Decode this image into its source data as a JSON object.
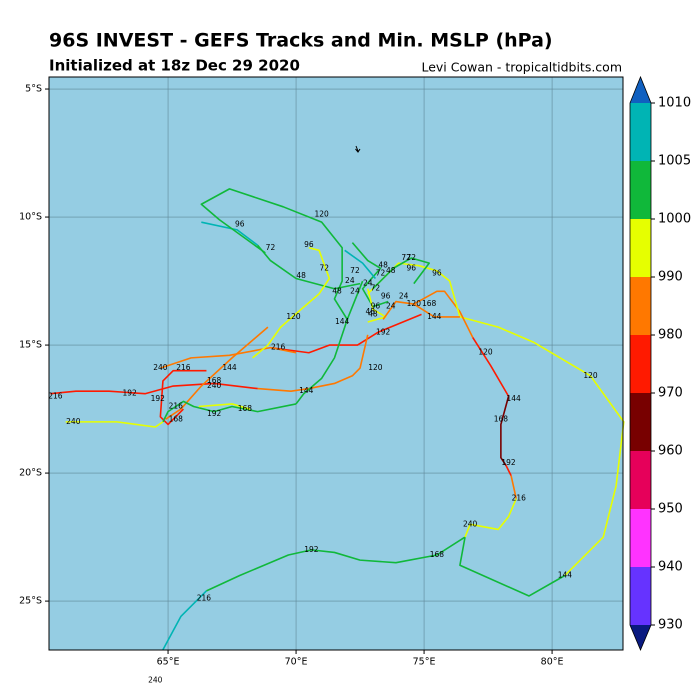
{
  "map": {
    "title": "96S INVEST - GEFS Tracks and Min. MSLP (hPa)",
    "subtitle": "Initialized at 18z Dec 29 2020",
    "credit": "Levi Cowan - tropicaltidbits.com",
    "background": "#95cde3",
    "xlim": [
      60.35,
      82.77
    ],
    "ylim": [
      -26.91,
      -4.53
    ],
    "xticks": [
      {
        "value": 65,
        "label": "65°E"
      },
      {
        "value": 70,
        "label": "70°E"
      },
      {
        "value": 75,
        "label": "75°E"
      },
      {
        "value": 80,
        "label": "80°E"
      }
    ],
    "yticks": [
      {
        "value": -5,
        "label": "5°S"
      },
      {
        "value": -10,
        "label": "10°S"
      },
      {
        "value": -15,
        "label": "15°S"
      },
      {
        "value": -20,
        "label": "20°S"
      },
      {
        "value": -25,
        "label": "25°S"
      }
    ],
    "grid": true,
    "colorbar": {
      "bounds": [
        930,
        940,
        950,
        960,
        970,
        980,
        990,
        1000,
        1005,
        1010
      ],
      "colors": [
        "#6633ff",
        "#ff33ff",
        "#e6005a",
        "#780000",
        "#ff1a00",
        "#ff7800",
        "#e6ff00",
        "#10b83a",
        "#00b4b4"
      ],
      "under": "#0a1a80",
      "over": "#1060c0"
    },
    "tracks": [
      {
        "color": "#e6ff00",
        "points": [
          [
            76.4,
            -13.9
          ],
          [
            77.9,
            -14.3
          ],
          [
            79.3,
            -14.9
          ],
          [
            81.5,
            -16.2
          ],
          [
            82.8,
            -18.0
          ],
          [
            82.5,
            -20.5
          ],
          [
            82.0,
            -22.5
          ],
          [
            80.5,
            -24.0
          ]
        ]
      },
      {
        "color": "#10b83a",
        "points": [
          [
            80.5,
            -24.0
          ],
          [
            79.1,
            -24.8
          ],
          [
            76.4,
            -23.6
          ],
          [
            76.6,
            -22.5
          ]
        ]
      },
      {
        "color": "#10b83a",
        "points": [
          [
            76.6,
            -22.5
          ],
          [
            75.5,
            -23.2
          ],
          [
            73.9,
            -23.5
          ],
          [
            72.5,
            -23.4
          ],
          [
            71.5,
            -23.1
          ],
          [
            70.6,
            -23.0
          ],
          [
            69.7,
            -23.2
          ],
          [
            67.8,
            -24.0
          ],
          [
            66.5,
            -24.6
          ]
        ]
      },
      {
        "color": "#00b4b4",
        "points": [
          [
            66.5,
            -24.6
          ],
          [
            65.5,
            -25.6
          ],
          [
            64.8,
            -26.9
          ]
        ]
      },
      {
        "color": "#ff7800",
        "points": [
          [
            74.6,
            -13.4
          ],
          [
            75.5,
            -12.9
          ],
          [
            75.8,
            -12.9
          ],
          [
            76.4,
            -13.7
          ],
          [
            76.9,
            -14.7
          ]
        ]
      },
      {
        "color": "#ff1a00",
        "points": [
          [
            76.9,
            -14.7
          ],
          [
            77.6,
            -15.8
          ],
          [
            78.3,
            -17.0
          ]
        ]
      },
      {
        "color": "#780000",
        "points": [
          [
            78.3,
            -17.0
          ],
          [
            78.0,
            -18.1
          ],
          [
            78.0,
            -19.4
          ],
          [
            78.2,
            -19.7
          ]
        ]
      },
      {
        "color": "#ff1a00",
        "points": [
          [
            78.2,
            -19.7
          ],
          [
            78.4,
            -20.1
          ]
        ]
      },
      {
        "color": "#ff7800",
        "points": [
          [
            78.4,
            -20.1
          ],
          [
            78.6,
            -21.0
          ]
        ]
      },
      {
        "color": "#e6ff00",
        "points": [
          [
            78.6,
            -21.0
          ],
          [
            78.3,
            -21.7
          ],
          [
            77.9,
            -22.2
          ],
          [
            76.8,
            -22.0
          ],
          [
            76.6,
            -22.5
          ]
        ]
      },
      {
        "color": "#ff1a00",
        "points": [
          [
            74.9,
            -13.8
          ],
          [
            73.2,
            -14.5
          ],
          [
            72.4,
            -15.0
          ],
          [
            71.3,
            -15.0
          ],
          [
            70.5,
            -15.3
          ],
          [
            69.0,
            -15.1
          ]
        ]
      },
      {
        "color": "#ff7800",
        "points": [
          [
            72.8,
            -14.6
          ],
          [
            72.5,
            -15.9
          ],
          [
            72.2,
            -16.2
          ],
          [
            71.5,
            -16.5
          ],
          [
            70.5,
            -16.7
          ],
          [
            69.8,
            -16.8
          ],
          [
            68.5,
            -16.7
          ]
        ]
      },
      {
        "color": "#ff1a00",
        "points": [
          [
            68.5,
            -16.7
          ],
          [
            66.8,
            -16.5
          ],
          [
            65.2,
            -16.6
          ],
          [
            64.1,
            -16.9
          ],
          [
            62.7,
            -16.8
          ],
          [
            61.4,
            -16.8
          ],
          [
            60.4,
            -16.9
          ]
        ]
      },
      {
        "color": "#ff7800",
        "points": [
          [
            70.0,
            -15.3
          ],
          [
            69.0,
            -15.1
          ],
          [
            67.4,
            -15.4
          ],
          [
            65.9,
            -15.5
          ],
          [
            64.7,
            -15.9
          ]
        ]
      },
      {
        "color": "#ff7800",
        "points": [
          [
            68.9,
            -14.3
          ],
          [
            67.5,
            -15.5
          ],
          [
            66.3,
            -16.6
          ],
          [
            65.5,
            -17.5
          ],
          [
            64.9,
            -17.9
          ]
        ]
      },
      {
        "color": "#ff1a00",
        "points": [
          [
            66.5,
            -16.0
          ],
          [
            65.2,
            -16.0
          ],
          [
            64.8,
            -16.4
          ],
          [
            64.7,
            -17.8
          ],
          [
            65.0,
            -18.1
          ],
          [
            65.6,
            -17.5
          ]
        ]
      },
      {
        "color": "#10b83a",
        "points": [
          [
            70.0,
            -17.3
          ],
          [
            68.5,
            -17.6
          ],
          [
            67.5,
            -17.4
          ],
          [
            66.8,
            -17.6
          ],
          [
            66.0,
            -17.4
          ],
          [
            65.6,
            -17.2
          ],
          [
            65.0,
            -17.6
          ],
          [
            64.8,
            -18.0
          ]
        ]
      },
      {
        "color": "#e6ff00",
        "points": [
          [
            64.8,
            -18.0
          ],
          [
            64.5,
            -18.2
          ],
          [
            63.0,
            -18.0
          ],
          [
            61.0,
            -18.0
          ]
        ]
      },
      {
        "color": "#e6ff00",
        "points": [
          [
            66.2,
            -17.4
          ],
          [
            67.5,
            -17.3
          ],
          [
            68.2,
            -17.5
          ]
        ]
      },
      {
        "color": "#00b4b4",
        "points": [
          [
            66.3,
            -10.2
          ],
          [
            67.7,
            -10.5
          ],
          [
            68.5,
            -11.1
          ]
        ]
      },
      {
        "color": "#10b83a",
        "points": [
          [
            68.5,
            -11.1
          ],
          [
            69.0,
            -11.7
          ],
          [
            70.0,
            -12.4
          ],
          [
            71.5,
            -12.8
          ],
          [
            72.5,
            -12.6
          ]
        ]
      },
      {
        "color": "#10b83a",
        "points": [
          [
            72.0,
            -14.0
          ],
          [
            71.5,
            -13.2
          ],
          [
            71.8,
            -12.5
          ],
          [
            71.8,
            -11.2
          ],
          [
            71.0,
            -10.2
          ],
          [
            69.5,
            -9.6
          ],
          [
            67.4,
            -8.9
          ],
          [
            66.3,
            -9.5
          ],
          [
            67.0,
            -10.1
          ],
          [
            68.8,
            -11.4
          ]
        ]
      },
      {
        "color": "#10b83a",
        "points": [
          [
            72.6,
            -12.5
          ],
          [
            72.0,
            -14.0
          ],
          [
            71.5,
            -15.5
          ],
          [
            71.0,
            -16.3
          ],
          [
            70.3,
            -16.9
          ],
          [
            70.0,
            -17.3
          ]
        ]
      },
      {
        "color": "#e6ff00",
        "points": [
          [
            70.5,
            -11.2
          ],
          [
            70.9,
            -11.3
          ],
          [
            71.3,
            -12.4
          ],
          [
            70.9,
            -13.0
          ],
          [
            70.2,
            -13.6
          ],
          [
            69.4,
            -14.3
          ],
          [
            68.9,
            -15.0
          ],
          [
            68.3,
            -15.5
          ]
        ]
      },
      {
        "color": "#e6ff00",
        "points": [
          [
            72.8,
            -13.0
          ],
          [
            73.5,
            -12.3
          ],
          [
            74.0,
            -11.8
          ],
          [
            74.8,
            -11.9
          ],
          [
            75.5,
            -12.1
          ],
          [
            76.0,
            -12.5
          ],
          [
            76.4,
            -13.9
          ]
        ]
      },
      {
        "color": "#10b83a",
        "points": [
          [
            73.0,
            -12.8
          ],
          [
            73.8,
            -12.0
          ],
          [
            74.5,
            -11.6
          ],
          [
            75.2,
            -11.8
          ],
          [
            74.6,
            -12.6
          ]
        ]
      },
      {
        "color": "#10b83a",
        "points": [
          [
            72.2,
            -11.0
          ],
          [
            72.8,
            -11.7
          ],
          [
            73.3,
            -12.0
          ],
          [
            72.6,
            -12.8
          ],
          [
            73.0,
            -13.5
          ],
          [
            73.6,
            -13.3
          ]
        ]
      },
      {
        "color": "#00b4b4",
        "points": [
          [
            71.9,
            -11.3
          ],
          [
            72.6,
            -11.8
          ],
          [
            73.1,
            -12.4
          ]
        ]
      },
      {
        "color": "#e6ff00",
        "points": [
          [
            72.8,
            -12.8
          ],
          [
            73.0,
            -13.6
          ],
          [
            73.5,
            -13.9
          ],
          [
            72.8,
            -14.1
          ]
        ]
      },
      {
        "color": "#ff7800",
        "points": [
          [
            73.4,
            -14.0
          ],
          [
            73.9,
            -13.3
          ],
          [
            74.6,
            -13.4
          ],
          [
            75.4,
            -13.9
          ],
          [
            76.4,
            -13.9
          ]
        ]
      }
    ],
    "labels": [
      {
        "text": "96",
        "lon": 67.8,
        "lat": -10.3
      },
      {
        "text": "120",
        "lon": 71.0,
        "lat": -9.9
      },
      {
        "text": "72",
        "lon": 69.0,
        "lat": -11.2
      },
      {
        "text": "96",
        "lon": 70.5,
        "lat": -11.1
      },
      {
        "text": "72",
        "lon": 71.1,
        "lat": -12.0
      },
      {
        "text": "48",
        "lon": 70.2,
        "lat": -12.3
      },
      {
        "text": "72",
        "lon": 72.3,
        "lat": -12.1
      },
      {
        "text": "48",
        "lon": 71.6,
        "lat": -12.9
      },
      {
        "text": "24",
        "lon": 72.1,
        "lat": -12.5
      },
      {
        "text": "24",
        "lon": 72.3,
        "lat": -12.9
      },
      {
        "text": "48",
        "lon": 73.4,
        "lat": -11.9
      },
      {
        "text": "72",
        "lon": 73.3,
        "lat": -12.2
      },
      {
        "text": "48",
        "lon": 73.7,
        "lat": -12.1
      },
      {
        "text": "72",
        "lon": 74.3,
        "lat": -11.6
      },
      {
        "text": "72",
        "lon": 74.5,
        "lat": -11.6
      },
      {
        "text": "96",
        "lon": 74.5,
        "lat": -12.0
      },
      {
        "text": "96",
        "lon": 75.5,
        "lat": -12.2
      },
      {
        "text": "24",
        "lon": 72.8,
        "lat": -12.6
      },
      {
        "text": "72",
        "lon": 73.1,
        "lat": -12.8
      },
      {
        "text": "96",
        "lon": 73.5,
        "lat": -13.1
      },
      {
        "text": "24",
        "lon": 74.2,
        "lat": -13.1
      },
      {
        "text": "24",
        "lon": 73.7,
        "lat": -13.5
      },
      {
        "text": "96",
        "lon": 73.1,
        "lat": -13.5
      },
      {
        "text": "48",
        "lon": 72.9,
        "lat": -13.7
      },
      {
        "text": "48",
        "lon": 73.0,
        "lat": -13.8
      },
      {
        "text": "120",
        "lon": 74.6,
        "lat": -13.4
      },
      {
        "text": "168",
        "lon": 75.2,
        "lat": -13.4
      },
      {
        "text": "144",
        "lon": 75.4,
        "lat": -13.9
      },
      {
        "text": "144",
        "lon": 71.8,
        "lat": -14.1
      },
      {
        "text": "120",
        "lon": 69.9,
        "lat": -13.9
      },
      {
        "text": "192",
        "lon": 73.4,
        "lat": -14.5
      },
      {
        "text": "216",
        "lon": 69.3,
        "lat": -15.1
      },
      {
        "text": "120",
        "lon": 73.1,
        "lat": -15.9
      },
      {
        "text": "144",
        "lon": 67.4,
        "lat": -15.9
      },
      {
        "text": "240",
        "lon": 64.7,
        "lat": -15.9
      },
      {
        "text": "216",
        "lon": 65.6,
        "lat": -15.9
      },
      {
        "text": "168",
        "lon": 66.8,
        "lat": -16.4
      },
      {
        "text": "240",
        "lon": 66.8,
        "lat": -16.6
      },
      {
        "text": "192",
        "lon": 63.5,
        "lat": -16.9
      },
      {
        "text": "216",
        "lon": 60.6,
        "lat": -17.0
      },
      {
        "text": "192",
        "lon": 64.6,
        "lat": -17.1
      },
      {
        "text": "216",
        "lon": 65.3,
        "lat": -17.4
      },
      {
        "text": "168",
        "lon": 65.3,
        "lat": -17.9
      },
      {
        "text": "192",
        "lon": 66.8,
        "lat": -17.7
      },
      {
        "text": "168",
        "lon": 68.0,
        "lat": -17.5
      },
      {
        "text": "144",
        "lon": 70.4,
        "lat": -16.8
      },
      {
        "text": "240",
        "lon": 61.3,
        "lat": -18.0
      },
      {
        "text": "120",
        "lon": 81.5,
        "lat": -16.2
      },
      {
        "text": "120",
        "lon": 77.4,
        "lat": -15.3
      },
      {
        "text": "144",
        "lon": 78.5,
        "lat": -17.1
      },
      {
        "text": "168",
        "lon": 78.0,
        "lat": -17.9
      },
      {
        "text": "192",
        "lon": 78.3,
        "lat": -19.6
      },
      {
        "text": "216",
        "lon": 78.7,
        "lat": -21.0
      },
      {
        "text": "240",
        "lon": 76.8,
        "lat": -22.0
      },
      {
        "text": "168",
        "lon": 75.5,
        "lat": -23.2
      },
      {
        "text": "144",
        "lon": 80.5,
        "lat": -24.0
      },
      {
        "text": "192",
        "lon": 70.6,
        "lat": -23.0
      },
      {
        "text": "216",
        "lon": 66.4,
        "lat": -24.9
      },
      {
        "text": "240",
        "lon": 64.5,
        "lat": -28.1
      }
    ]
  }
}
